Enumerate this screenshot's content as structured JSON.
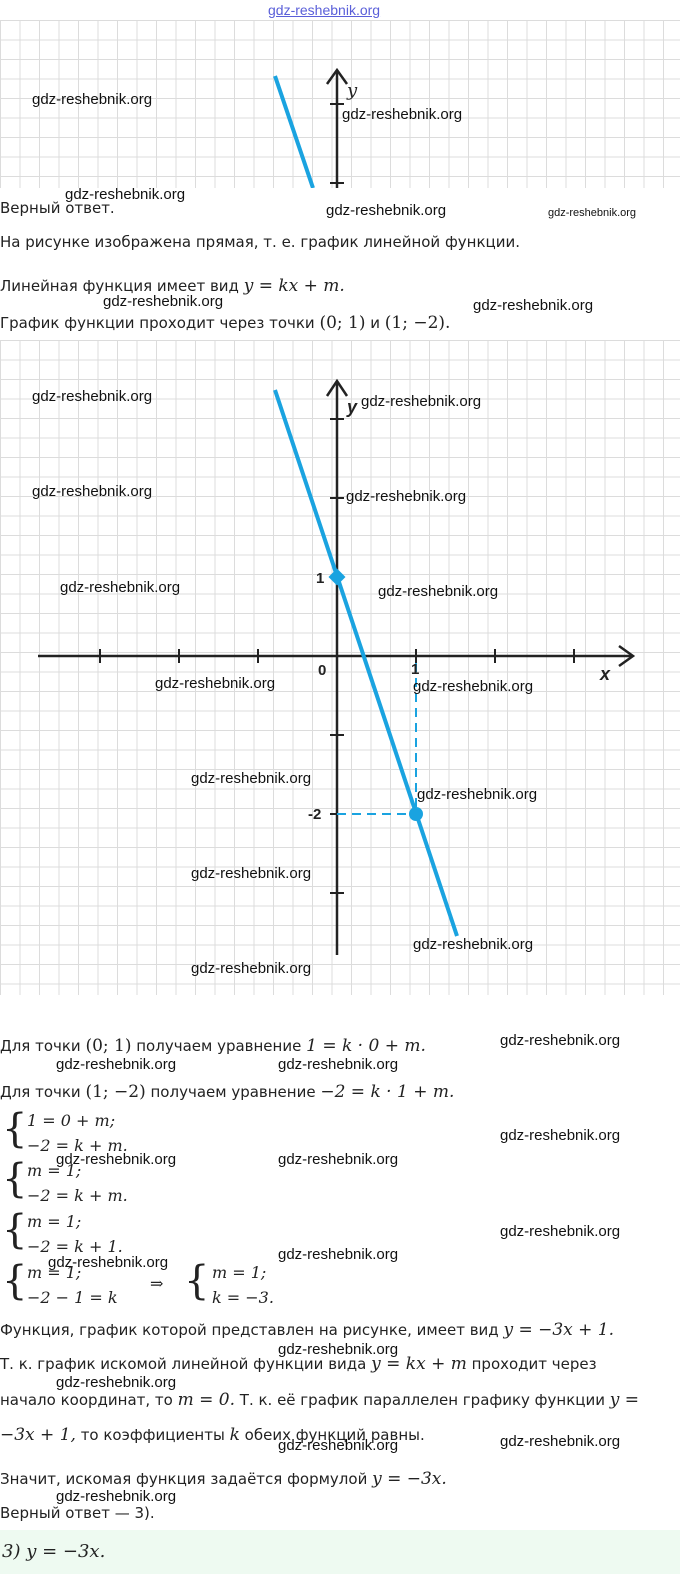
{
  "site_link": "gdz-reshebnik.org",
  "watermark": "gdz-reshebnik.org",
  "graph_labels": {
    "x": "x",
    "y": "y",
    "origin": "0",
    "one_x": "1",
    "one_y": "1",
    "minus_two": "-2"
  },
  "text": {
    "verdict": "Верный ответ.",
    "p1": "На рисунке изображена прямая, т. е. график линейной функции.",
    "p2_prefix": "Линейная функция имеет вид ",
    "p2_math": "y = kx + m.",
    "p3_prefix": "График функции проходит через точки ",
    "p3_pt1": "(0; 1)",
    "p3_and": " и ",
    "p3_pt2": "(1; −2).",
    "p4_prefix": "Для точки ",
    "p4_pt": "(0; 1)",
    "p4_mid": " получаем уравнение ",
    "p4_eq": "1 = k · 0 + m.",
    "p5_prefix": "Для точки ",
    "p5_pt": "(1; −2)",
    "p5_mid": " получаем уравнение ",
    "p5_eq": "−2 = k · 1 + m.",
    "sys1_a": "1 = 0 + m;",
    "sys1_b": "−2 = k + m.",
    "sys2_a": "m = 1;",
    "sys2_b": "−2 = k + m.",
    "sys3_a": "m = 1;",
    "sys3_b": "−2 = k + 1.",
    "sys4_a": "m = 1;",
    "sys4_b": "−2 − 1 = k",
    "arrow": "⇒",
    "sys5_a": "m = 1;",
    "sys5_b": "k = −3.",
    "p6_prefix": "Функция, график которой представлен на рисунке, имеет вид ",
    "p6_math": "y = −3x + 1.",
    "p7_prefix": "Т. к. график искомой линейной функции вида ",
    "p7_math": "y = kx + m",
    "p7_suffix": " проходит через",
    "p8_prefix": "начало координат, то ",
    "p8_math": "m = 0.",
    "p8_mid": " Т. к. её график параллелен графику функции ",
    "p8_math2": "y =",
    "p9_math": "−3x + 1,",
    "p9_mid": " то коэффициенты ",
    "p9_k": "k",
    "p9_suffix": " обеих функций равны.",
    "p10_prefix": "Значит, искомая функция задаётся формулой ",
    "p10_math": "y = −3x.",
    "p11": "Верный ответ — 3).",
    "answer": "3) y = −3x."
  }
}
